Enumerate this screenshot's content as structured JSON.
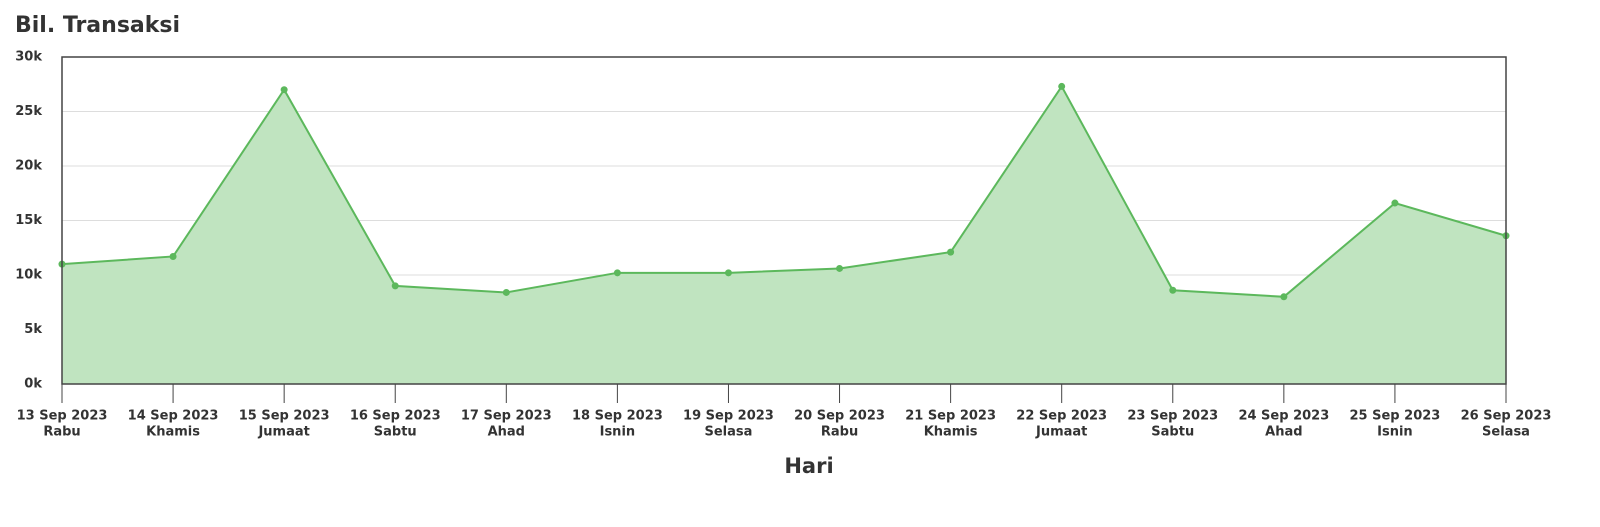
{
  "chart_data": {
    "type": "area",
    "title": "Bil. Transaksi",
    "x_label": "Hari",
    "categories": [
      "13 Sep 2023",
      "14 Sep 2023",
      "15 Sep 2023",
      "16 Sep 2023",
      "17 Sep 2023",
      "18 Sep 2023",
      "19 Sep 2023",
      "20 Sep 2023",
      "21 Sep 2023",
      "22 Sep 2023",
      "23 Sep 2023",
      "24 Sep 2023",
      "25 Sep 2023",
      "26 Sep 2023"
    ],
    "weekdays": [
      "Rabu",
      "Khamis",
      "Jumaat",
      "Sabtu",
      "Ahad",
      "Isnin",
      "Selasa",
      "Rabu",
      "Khamis",
      "Jumaat",
      "Sabtu",
      "Ahad",
      "Isnin",
      "Selasa"
    ],
    "values": [
      11000,
      11700,
      27000,
      9000,
      8400,
      10200,
      10200,
      10600,
      12100,
      27300,
      8600,
      8000,
      16600,
      13600
    ],
    "color": "#5cb85c",
    "fill": "#c0e4c0",
    "ylim": [
      0,
      30000
    ],
    "yticks": [
      {
        "value": 0,
        "label": "0k"
      },
      {
        "value": 5000,
        "label": "5k"
      },
      {
        "value": 10000,
        "label": "10k"
      },
      {
        "value": 15000,
        "label": "15k"
      },
      {
        "value": 20000,
        "label": "20k"
      },
      {
        "value": 25000,
        "label": "25k"
      },
      {
        "value": 30000,
        "label": "30k"
      }
    ],
    "grid": true
  }
}
